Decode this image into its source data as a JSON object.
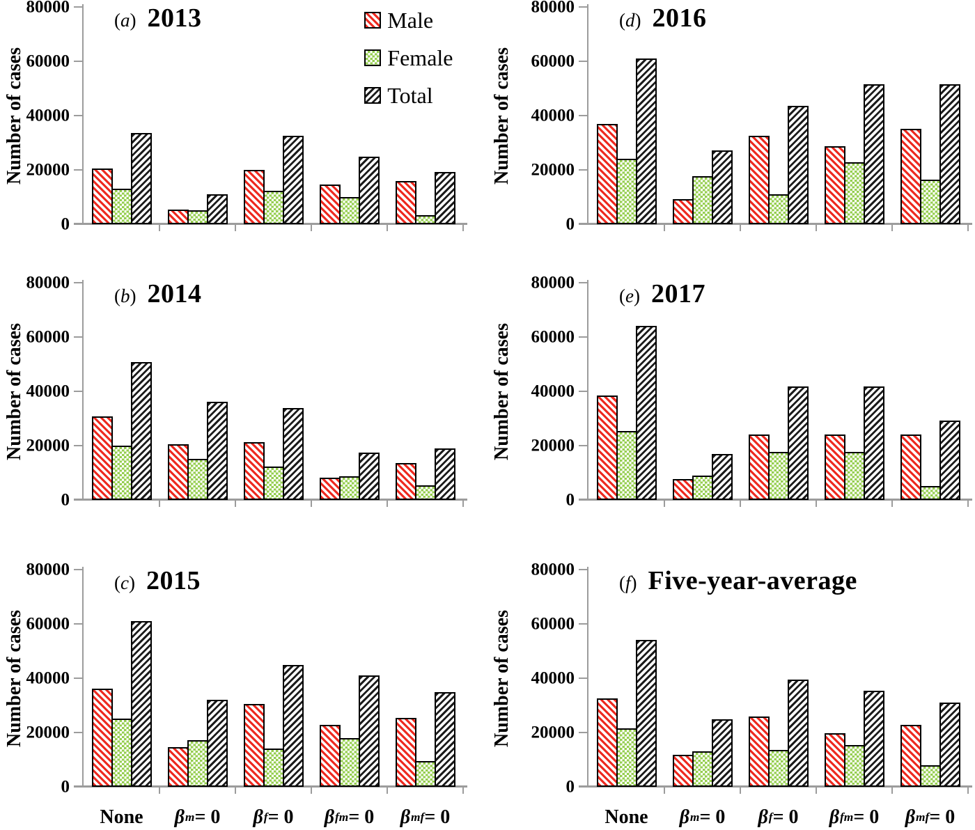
{
  "figure": {
    "ylabel": "Number of cases",
    "ylim": [
      0,
      80000
    ],
    "yticks": [
      0,
      20000,
      40000,
      60000,
      80000
    ],
    "grid": false,
    "colors": {
      "male_hatch": "#ee2a20",
      "female_hatch": "#95ce4f",
      "total_hatch": "#1c1c1c",
      "bar_border": "#000000",
      "axis": "#9c9c9c",
      "text": "#000000",
      "background": "#ffffff"
    },
    "legend": {
      "position": "top-right of panel (a)",
      "items": [
        {
          "name": "Male",
          "pattern": "red-diagonal-hatch"
        },
        {
          "name": "Female",
          "pattern": "green-checkerboard"
        },
        {
          "name": "Total",
          "pattern": "black-diagonal-hatch"
        }
      ]
    }
  },
  "chart_data": [
    {
      "type": "bar",
      "panel_label": "(a)",
      "title": "2013",
      "xlabel": "",
      "ylabel": "Number of cases",
      "ylim": [
        0,
        80000
      ],
      "yticks": [
        0,
        20000,
        40000,
        60000,
        80000
      ],
      "categories": [
        "None",
        "βm = 0",
        "βf = 0",
        "βfm = 0",
        "βmf = 0"
      ],
      "series": [
        {
          "name": "Male",
          "values": [
            20500,
            5500,
            20000,
            14500,
            15800
          ]
        },
        {
          "name": "Female",
          "values": [
            13000,
            5200,
            12300,
            10000,
            3300
          ]
        },
        {
          "name": "Total",
          "values": [
            33500,
            11000,
            32500,
            24800,
            19300
          ]
        }
      ]
    },
    {
      "type": "bar",
      "panel_label": "(b)",
      "title": "2014",
      "xlabel": "",
      "ylabel": "Number of cases",
      "ylim": [
        0,
        80000
      ],
      "yticks": [
        0,
        20000,
        40000,
        60000,
        80000
      ],
      "categories": [
        "None",
        "βm = 0",
        "βf = 0",
        "βfm = 0",
        "βmf = 0"
      ],
      "series": [
        {
          "name": "Male",
          "values": [
            30800,
            20600,
            21400,
            8300,
            13500
          ]
        },
        {
          "name": "Female",
          "values": [
            20000,
            15200,
            12300,
            8800,
            5500
          ]
        },
        {
          "name": "Total",
          "values": [
            50800,
            36200,
            33800,
            17500,
            19000
          ]
        }
      ]
    },
    {
      "type": "bar",
      "panel_label": "(c)",
      "title": "2015",
      "xlabel": "",
      "ylabel": "Number of cases",
      "ylim": [
        0,
        80000
      ],
      "yticks": [
        0,
        20000,
        40000,
        60000,
        80000
      ],
      "categories": [
        "None",
        "βm = 0",
        "βf = 0",
        "βfm = 0",
        "βmf = 0"
      ],
      "series": [
        {
          "name": "Male",
          "values": [
            36200,
            14700,
            30500,
            22900,
            25500
          ]
        },
        {
          "name": "Female",
          "values": [
            25000,
            17200,
            14200,
            17900,
            9400
          ]
        },
        {
          "name": "Total",
          "values": [
            61000,
            32000,
            44800,
            40900,
            34900
          ]
        }
      ]
    },
    {
      "type": "bar",
      "panel_label": "(d)",
      "title": "2016",
      "xlabel": "",
      "ylabel": "Number of cases",
      "ylim": [
        0,
        80000
      ],
      "yticks": [
        0,
        20000,
        40000,
        60000,
        80000
      ],
      "categories": [
        "None",
        "βm = 0",
        "βf = 0",
        "βfm = 0",
        "βmf = 0"
      ],
      "series": [
        {
          "name": "Male",
          "values": [
            36800,
            9300,
            32500,
            28800,
            35000
          ]
        },
        {
          "name": "Female",
          "values": [
            24000,
            17800,
            11000,
            22800,
            16500
          ]
        },
        {
          "name": "Total",
          "values": [
            61000,
            27200,
            43600,
            51500,
            51600
          ]
        }
      ]
    },
    {
      "type": "bar",
      "panel_label": "(e)",
      "title": "2017",
      "xlabel": "",
      "ylabel": "Number of cases",
      "ylim": [
        0,
        80000
      ],
      "yticks": [
        0,
        20000,
        40000,
        60000,
        80000
      ],
      "categories": [
        "None",
        "βm = 0",
        "βf = 0",
        "βfm = 0",
        "βmf = 0"
      ],
      "series": [
        {
          "name": "Male",
          "values": [
            38500,
            7800,
            24200,
            24200,
            24200
          ]
        },
        {
          "name": "Female",
          "values": [
            25500,
            9000,
            17800,
            17700,
            5200
          ]
        },
        {
          "name": "Total",
          "values": [
            64000,
            16900,
            41900,
            41900,
            29300
          ]
        }
      ]
    },
    {
      "type": "bar",
      "panel_label": "(f)",
      "title": "Five-year-average",
      "xlabel": "",
      "ylabel": "Number of cases",
      "ylim": [
        0,
        80000
      ],
      "yticks": [
        0,
        20000,
        40000,
        60000,
        80000
      ],
      "categories": [
        "None",
        "βm = 0",
        "βf = 0",
        "βfm = 0",
        "βmf = 0"
      ],
      "series": [
        {
          "name": "Male",
          "values": [
            32500,
            11800,
            25800,
            19800,
            22900
          ]
        },
        {
          "name": "Female",
          "values": [
            21500,
            13100,
            13500,
            15500,
            8000
          ]
        },
        {
          "name": "Total",
          "values": [
            54000,
            24800,
            39400,
            35300,
            31000
          ]
        }
      ]
    }
  ]
}
